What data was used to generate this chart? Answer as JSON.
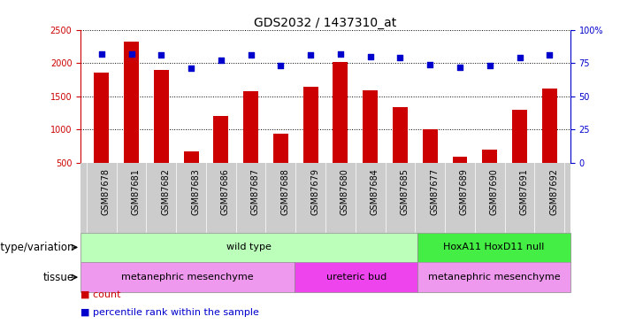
{
  "title": "GDS2032 / 1437310_at",
  "samples": [
    "GSM87678",
    "GSM87681",
    "GSM87682",
    "GSM87683",
    "GSM87686",
    "GSM87687",
    "GSM87688",
    "GSM87679",
    "GSM87680",
    "GSM87684",
    "GSM87685",
    "GSM87677",
    "GSM87689",
    "GSM87690",
    "GSM87691",
    "GSM87692"
  ],
  "counts": [
    1850,
    2320,
    1900,
    670,
    1200,
    1580,
    930,
    1640,
    2010,
    1590,
    1340,
    1000,
    590,
    700,
    1300,
    1610
  ],
  "percentile_ranks": [
    82,
    82,
    81,
    71,
    77,
    81,
    73,
    81,
    82,
    80,
    79,
    74,
    72,
    73,
    79,
    81
  ],
  "ylim_left": [
    500,
    2500
  ],
  "ylim_right": [
    0,
    100
  ],
  "yticks_left": [
    500,
    1000,
    1500,
    2000,
    2500
  ],
  "yticks_right": [
    0,
    25,
    50,
    75,
    100
  ],
  "bar_color": "#cc0000",
  "scatter_color": "#0000cc",
  "bar_width": 0.5,
  "genotype_groups": [
    {
      "label": "wild type",
      "start": 0,
      "end": 11,
      "color": "#bbffbb"
    },
    {
      "label": "HoxA11 HoxD11 null",
      "start": 11,
      "end": 16,
      "color": "#44ee44"
    }
  ],
  "tissue_groups": [
    {
      "label": "metanephric mesenchyme",
      "start": 0,
      "end": 7,
      "color": "#ee99ee"
    },
    {
      "label": "ureteric bud",
      "start": 7,
      "end": 11,
      "color": "#ee44ee"
    },
    {
      "label": "metanephric mesenchyme",
      "start": 11,
      "end": 16,
      "color": "#ee99ee"
    }
  ],
  "xtick_bg_color": "#cccccc",
  "legend_count_color": "#cc0000",
  "legend_pct_color": "#0000cc",
  "genotype_label": "genotype/variation",
  "tissue_label": "tissue",
  "legend_count": "count",
  "legend_pct": "percentile rank within the sample",
  "title_fontsize": 10,
  "tick_fontsize": 7,
  "label_fontsize": 8.5,
  "annot_fontsize": 8
}
